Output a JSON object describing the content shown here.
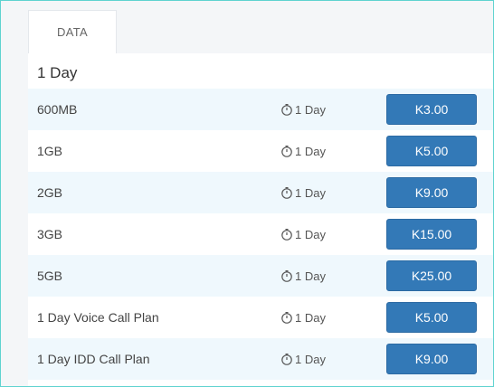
{
  "tabs": [
    {
      "label": "DATA",
      "active": true
    }
  ],
  "section": {
    "title": "1 Day"
  },
  "plans": [
    {
      "name": "600MB",
      "validity": "1 Day",
      "price": "K3.00"
    },
    {
      "name": "1GB",
      "validity": "1 Day",
      "price": "K5.00"
    },
    {
      "name": "2GB",
      "validity": "1 Day",
      "price": "K9.00"
    },
    {
      "name": "3GB",
      "validity": "1 Day",
      "price": "K15.00"
    },
    {
      "name": "5GB",
      "validity": "1 Day",
      "price": "K25.00"
    },
    {
      "name": "1 Day Voice Call Plan",
      "validity": "1 Day",
      "price": "K5.00"
    },
    {
      "name": "1 Day IDD Call Plan",
      "validity": "1 Day",
      "price": "K9.00"
    }
  ],
  "icons": {
    "validity": "stopwatch-icon"
  },
  "colors": {
    "button": "#3379b7",
    "row_alt": "#eff8fd",
    "frame_border": "#5fd3d0"
  }
}
